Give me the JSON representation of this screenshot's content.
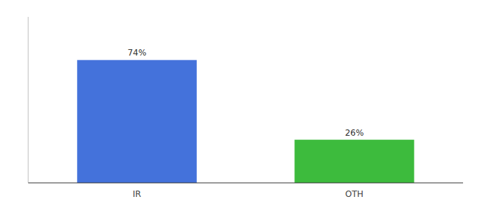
{
  "chart_data": {
    "type": "bar",
    "categories": [
      "IR",
      "OTH"
    ],
    "values": [
      74,
      26
    ],
    "value_labels": [
      "74%",
      "26%"
    ],
    "colors": [
      "#4472db",
      "#3dbb3d"
    ],
    "ylim": [
      0,
      100
    ],
    "data_labels": true,
    "tick_labels": "x",
    "grid": false
  }
}
